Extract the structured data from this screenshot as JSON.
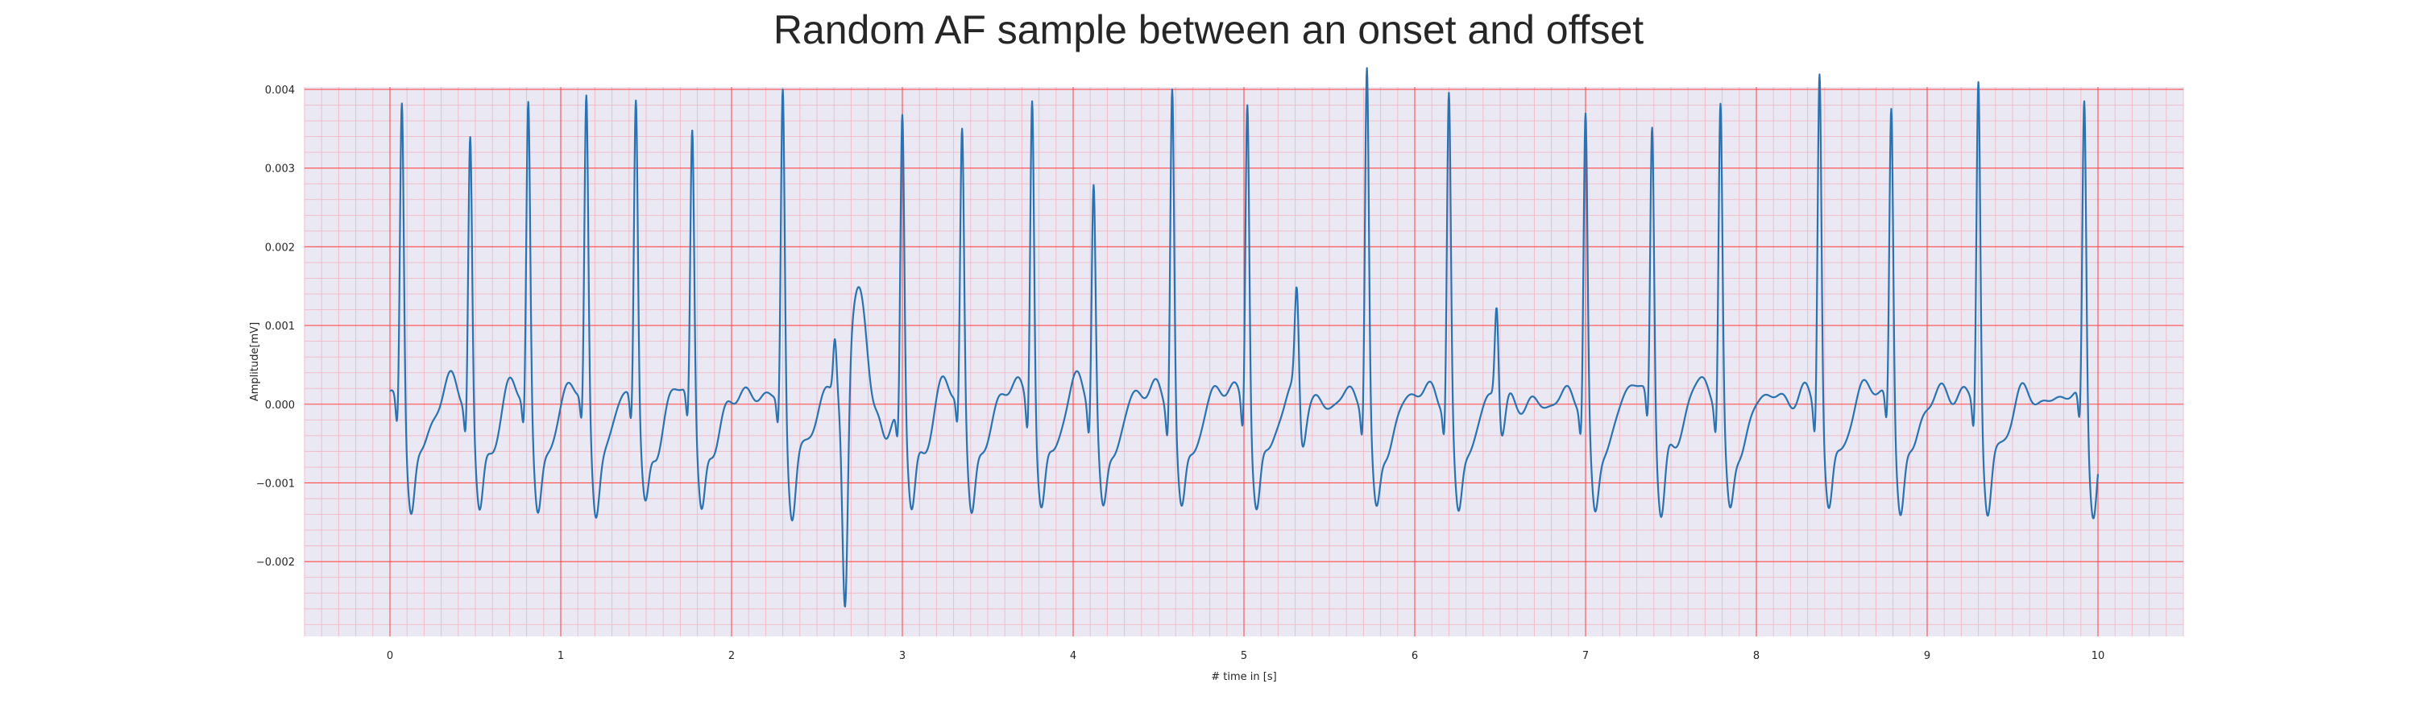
{
  "chart_data": {
    "type": "line",
    "title": "Random AF sample between an onset and offset",
    "xlabel": "# time in [s]",
    "ylabel": "Amplitude[mV]",
    "xlim": [
      -0.5,
      10.5
    ],
    "ylim": [
      -0.00295,
      0.00403
    ],
    "x_ticks": [
      0,
      1,
      2,
      3,
      4,
      5,
      6,
      7,
      8,
      9,
      10
    ],
    "x_tick_labels": [
      "0",
      "1",
      "2",
      "3",
      "4",
      "5",
      "6",
      "7",
      "8",
      "9",
      "10"
    ],
    "y_ticks": [
      -0.002,
      -0.001,
      0.0,
      0.001,
      0.002,
      0.003,
      0.004
    ],
    "y_tick_labels": [
      "−0.002",
      "−0.001",
      "0.000",
      "0.001",
      "0.002",
      "0.003",
      "0.004"
    ],
    "grid": {
      "major": true,
      "minor": true,
      "major_color": "#ff4d4d",
      "minor_color": "#f2b8c6"
    },
    "background": "#eae8f2",
    "line_color": "#2a72b0",
    "beats": [
      {
        "t": 0.07,
        "peak": 0.00365
      },
      {
        "t": 0.47,
        "peak": 0.0032
      },
      {
        "t": 0.81,
        "peak": 0.0035
      },
      {
        "t": 1.15,
        "peak": 0.00355
      },
      {
        "t": 1.44,
        "peak": 0.00355
      },
      {
        "t": 1.77,
        "peak": 0.0032
      },
      {
        "t": 2.3,
        "peak": 0.00375
      },
      {
        "t": 3.0,
        "peak": 0.0035
      },
      {
        "t": 3.35,
        "peak": 0.0032
      },
      {
        "t": 3.76,
        "peak": 0.00375
      },
      {
        "t": 4.12,
        "peak": 0.00265
      },
      {
        "t": 4.58,
        "peak": 0.00385
      },
      {
        "t": 5.02,
        "peak": 0.0037
      },
      {
        "t": 5.72,
        "peak": 0.00405
      },
      {
        "t": 6.2,
        "peak": 0.0037
      },
      {
        "t": 7.0,
        "peak": 0.00345
      },
      {
        "t": 7.39,
        "peak": 0.00335
      },
      {
        "t": 7.79,
        "peak": 0.0036
      },
      {
        "t": 8.37,
        "peak": 0.00405
      },
      {
        "t": 8.79,
        "peak": 0.00355
      },
      {
        "t": 9.3,
        "peak": 0.0039
      },
      {
        "t": 9.92,
        "peak": 0.00365
      }
    ],
    "ectopic_events": [
      {
        "t": 5.31,
        "peak": 0.00145
      },
      {
        "t": 6.48,
        "peak": 0.00132
      },
      {
        "t": 2.61,
        "peak": 0.0007
      },
      {
        "t": 2.66,
        "trough": -0.0026
      },
      {
        "t": 2.72,
        "plateau": 0.00133
      }
    ],
    "x_start": 0.0,
    "x_end": 10.0
  }
}
